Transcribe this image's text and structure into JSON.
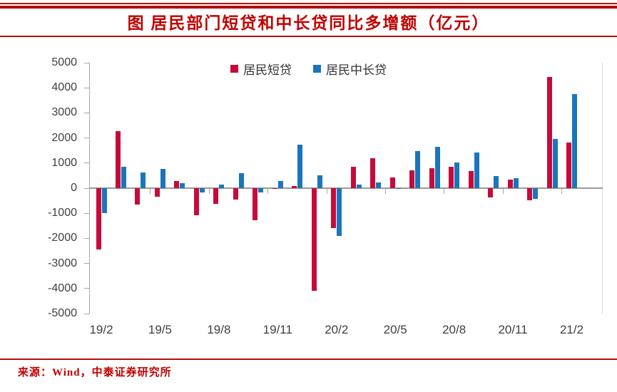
{
  "header": {
    "title": "图 居民部门短贷和中长贷同比多增额（亿元）"
  },
  "legend": {
    "items": [
      {
        "label": "居民短贷",
        "color": "#c60b3c"
      },
      {
        "label": "居民中长贷",
        "color": "#1b75bc"
      }
    ]
  },
  "source_note": "来源：Wind，中泰证券研究所",
  "colors": {
    "accent_red": "#c00000",
    "rule_red": "#b50d0d",
    "bar_short": "#c60b3c",
    "bar_long": "#1b75bc",
    "axis_gray": "#a6a6a6",
    "zero_line_gray": "#9a9a9a",
    "plot_border_gray": "#d9d9d9",
    "axis_text": "#3f3f3f"
  },
  "chart_data": {
    "type": "bar",
    "title": "图 居民部门短贷和中长贷同比多增额（亿元）",
    "xlabel": "",
    "ylabel": "",
    "unit": "亿元",
    "ylim": [
      -5000,
      5000
    ],
    "ytick_step": 1000,
    "y_tick_labels": [
      "5000",
      "4000",
      "3000",
      "2000",
      "1000",
      "0",
      "-1000",
      "-2000",
      "-3000",
      "-4000",
      "-5000"
    ],
    "x_tick_labels": [
      "19/2",
      "19/5",
      "19/8",
      "19/11",
      "20/2",
      "20/5",
      "20/8",
      "20/11",
      "21/2"
    ],
    "grid": false,
    "legend_position": "top-center",
    "categories": [
      "19/2",
      "19/3",
      "19/4",
      "19/5",
      "19/6",
      "19/7",
      "19/8",
      "19/9",
      "19/10",
      "19/11",
      "19/12",
      "20/1",
      "20/2",
      "20/3",
      "20/4",
      "20/5",
      "20/6",
      "20/7",
      "20/8",
      "20/9",
      "20/10",
      "20/11",
      "20/12",
      "21/1",
      "21/2"
    ],
    "series": [
      {
        "name": "居民短贷",
        "color": "#c60b3c",
        "values": [
          -2450,
          2260,
          -650,
          -330,
          280,
          -1080,
          -620,
          -450,
          -1280,
          -25,
          95,
          -4100,
          -1600,
          860,
          1190,
          420,
          715,
          805,
          850,
          690,
          -360,
          340,
          -490,
          4430,
          1810
        ]
      },
      {
        "name": "居民中长贷",
        "color": "#1b75bc",
        "values": [
          -1000,
          840,
          620,
          755,
          210,
          -180,
          130,
          610,
          -170,
          285,
          1740,
          520,
          -1890,
          135,
          235,
          -15,
          1490,
          1650,
          1020,
          1430,
          480,
          385,
          -435,
          1955,
          3740
        ]
      }
    ]
  }
}
